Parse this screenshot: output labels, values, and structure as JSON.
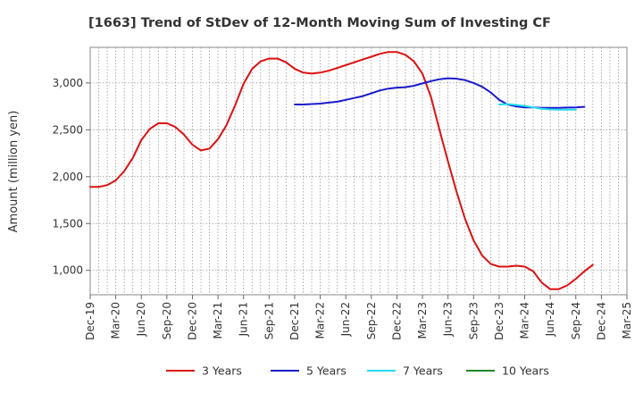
{
  "chart_data": {
    "type": "line",
    "title": "[1663]  Trend of StDev of 12-Month Moving Sum of Investing CF",
    "xlabel": "",
    "ylabel": "Amount (million yen)",
    "ylim": [
      740,
      3380
    ],
    "y_ticks": [
      1000,
      1500,
      2000,
      2500,
      3000
    ],
    "y_tick_labels": [
      "1,000",
      "1,500",
      "2,000",
      "2,500",
      "3,000"
    ],
    "x_tick_labels": [
      "Dec-19",
      "Mar-20",
      "Jun-20",
      "Sep-20",
      "Dec-20",
      "Mar-21",
      "Jun-21",
      "Sep-21",
      "Dec-21",
      "Mar-22",
      "Jun-22",
      "Sep-22",
      "Dec-22",
      "Mar-23",
      "Jun-23",
      "Sep-23",
      "Dec-23",
      "Mar-24",
      "Jun-24",
      "Sep-24",
      "Dec-24",
      "Mar-25"
    ],
    "x_start": "Dec-19",
    "x_end": "Mar-25",
    "grid": true,
    "legend_position": "bottom",
    "series": [
      {
        "name": "3 Years",
        "color": "#dd1111",
        "start": "Dec-19",
        "values": [
          1890,
          1890,
          1910,
          1960,
          2060,
          2200,
          2390,
          2510,
          2570,
          2570,
          2530,
          2450,
          2340,
          2280,
          2300,
          2400,
          2550,
          2760,
          2990,
          3150,
          3230,
          3260,
          3260,
          3220,
          3150,
          3110,
          3100,
          3110,
          3130,
          3160,
          3190,
          3220,
          3250,
          3280,
          3310,
          3330,
          3330,
          3300,
          3230,
          3100,
          2850,
          2500,
          2160,
          1840,
          1550,
          1320,
          1160,
          1070,
          1040,
          1040,
          1050,
          1040,
          990,
          870,
          800,
          800,
          840,
          910,
          990,
          1060
        ]
      },
      {
        "name": "5 Years",
        "color": "#1a1acc",
        "start": "Dec-21",
        "values": [
          2770,
          2770,
          2775,
          2780,
          2790,
          2800,
          2820,
          2840,
          2860,
          2890,
          2920,
          2940,
          2950,
          2955,
          2970,
          2995,
          3020,
          3040,
          3050,
          3045,
          3030,
          3000,
          2960,
          2900,
          2820,
          2770,
          2750,
          2740,
          2740,
          2735,
          2735,
          2735,
          2738,
          2740,
          2745
        ]
      },
      {
        "name": "7 Years",
        "color": "#22ddee",
        "start": "Dec-23",
        "values": [
          2770,
          2775,
          2765,
          2755,
          2740,
          2725,
          2718,
          2715,
          2715,
          2715
        ]
      },
      {
        "name": "10 Years",
        "color": "#228822",
        "start": "Dec-24",
        "values": []
      }
    ]
  }
}
